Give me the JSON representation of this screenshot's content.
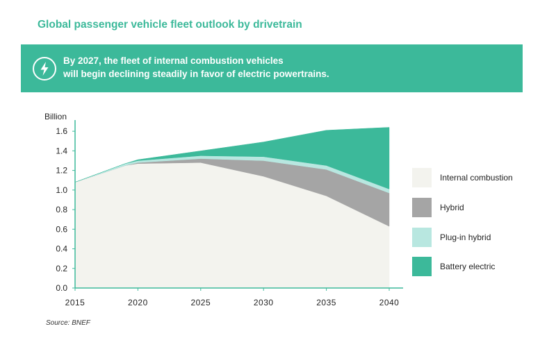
{
  "title": "Global passenger vehicle fleet outlook by drivetrain",
  "banner": {
    "icon": "lightning-bolt-icon",
    "line1": "By 2027, the fleet of internal combustion vehicles",
    "line2": "will begin declining steadily in favor of electric powertrains."
  },
  "source": "Source: BNEF",
  "chart_data": {
    "type": "area",
    "stacked": true,
    "ylabel": "Billion",
    "ylim": [
      0,
      1.7
    ],
    "yticks": [
      0.0,
      0.2,
      0.4,
      0.6,
      0.8,
      1.0,
      1.2,
      1.4,
      1.6
    ],
    "xticks": [
      2015,
      2020,
      2025,
      2030,
      2035,
      2040
    ],
    "xlim": [
      2015,
      2040
    ],
    "legend_position": "right",
    "x": [
      2015,
      2019,
      2020,
      2025,
      2030,
      2035,
      2040
    ],
    "series": [
      {
        "name": "Internal combustion",
        "color": "#f3f3ee",
        "values": [
          1.08,
          1.25,
          1.27,
          1.28,
          1.14,
          0.94,
          0.63
        ]
      },
      {
        "name": "Hybrid",
        "color": "#a5a5a5",
        "values": [
          0.0,
          0.0,
          0.01,
          0.04,
          0.16,
          0.27,
          0.34
        ]
      },
      {
        "name": "Plug-in hybrid",
        "color": "#b8e7e0",
        "values": [
          0.0,
          0.02,
          0.02,
          0.03,
          0.04,
          0.04,
          0.04
        ]
      },
      {
        "name": "Battery electric",
        "color": "#3cb99a",
        "values": [
          0.0,
          0.0,
          0.01,
          0.05,
          0.15,
          0.36,
          0.63
        ]
      }
    ]
  }
}
